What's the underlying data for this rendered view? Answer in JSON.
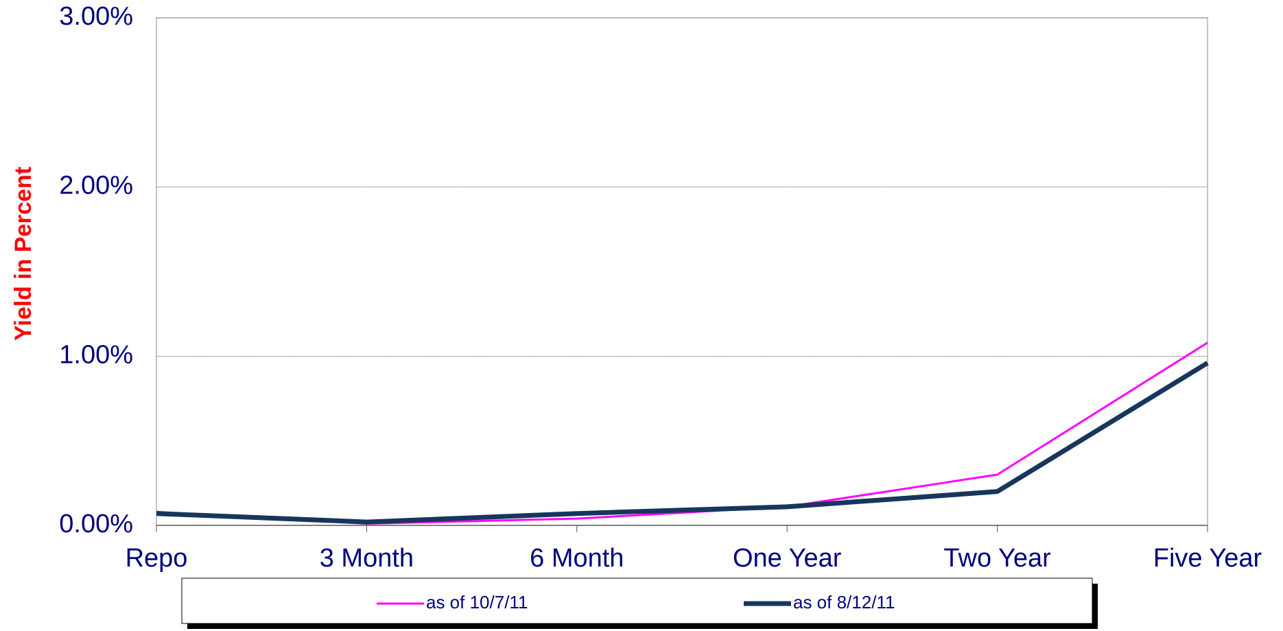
{
  "chart_data": {
    "type": "line",
    "y_label": "Yield in Percent",
    "categories": [
      "Repo",
      "3 Month",
      "6 Month",
      "One Year",
      "Two Year",
      "Five Year"
    ],
    "series": [
      {
        "name": "as of 10/7/11",
        "color": "#ff00ff",
        "values": [
          0.08,
          0.01,
          0.04,
          0.11,
          0.3,
          1.08
        ]
      },
      {
        "name": "as of 8/12/11",
        "color": "#17365d",
        "values": [
          0.07,
          0.02,
          0.07,
          0.11,
          0.2,
          0.96
        ]
      }
    ],
    "ylim": [
      0,
      3
    ],
    "yticks": [
      {
        "value": 0,
        "label": "0.00%"
      },
      {
        "value": 1,
        "label": "1.00%"
      },
      {
        "value": 2,
        "label": "2.00%"
      },
      {
        "value": 3,
        "label": "3.00%"
      }
    ],
    "grid": true
  }
}
